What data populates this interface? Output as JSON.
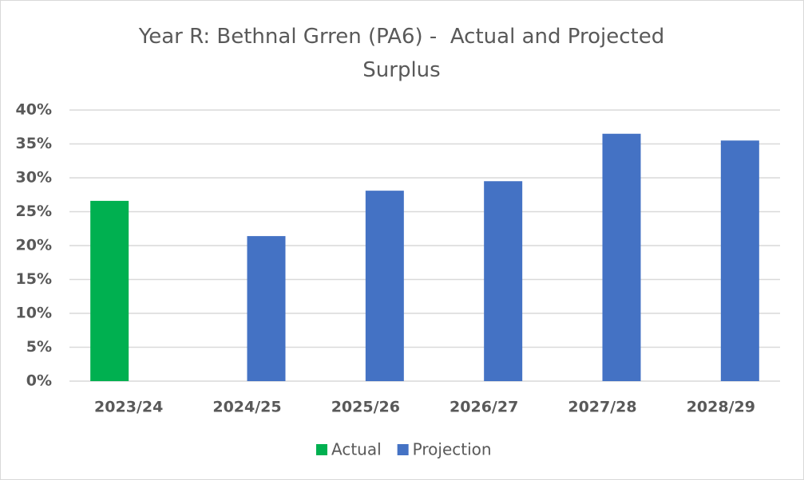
{
  "chart_data": {
    "type": "bar",
    "title": "Year R: Bethnal Grren (PA6) -  Actual and Projected Surplus",
    "categories": [
      "2023/24",
      "2024/25",
      "2025/26",
      "2026/27",
      "2027/28",
      "2028/29"
    ],
    "series": [
      {
        "name": "Actual",
        "color": "#00b050",
        "values": [
          26.6,
          null,
          null,
          null,
          null,
          null
        ]
      },
      {
        "name": "Projection",
        "color": "#4472c4",
        "values": [
          null,
          21.4,
          28.1,
          29.5,
          36.5,
          35.5
        ]
      }
    ],
    "ylim": [
      0,
      40
    ],
    "yticks": [
      {
        "value": 0,
        "label": "0%"
      },
      {
        "value": 5,
        "label": "5%"
      },
      {
        "value": 10,
        "label": "10%"
      },
      {
        "value": 15,
        "label": "15%"
      },
      {
        "value": 20,
        "label": "20%"
      },
      {
        "value": 25,
        "label": "25%"
      },
      {
        "value": 30,
        "label": "30%"
      },
      {
        "value": 35,
        "label": "35%"
      },
      {
        "value": 40,
        "label": "40%"
      }
    ],
    "grid": true,
    "legend": "bottom"
  }
}
